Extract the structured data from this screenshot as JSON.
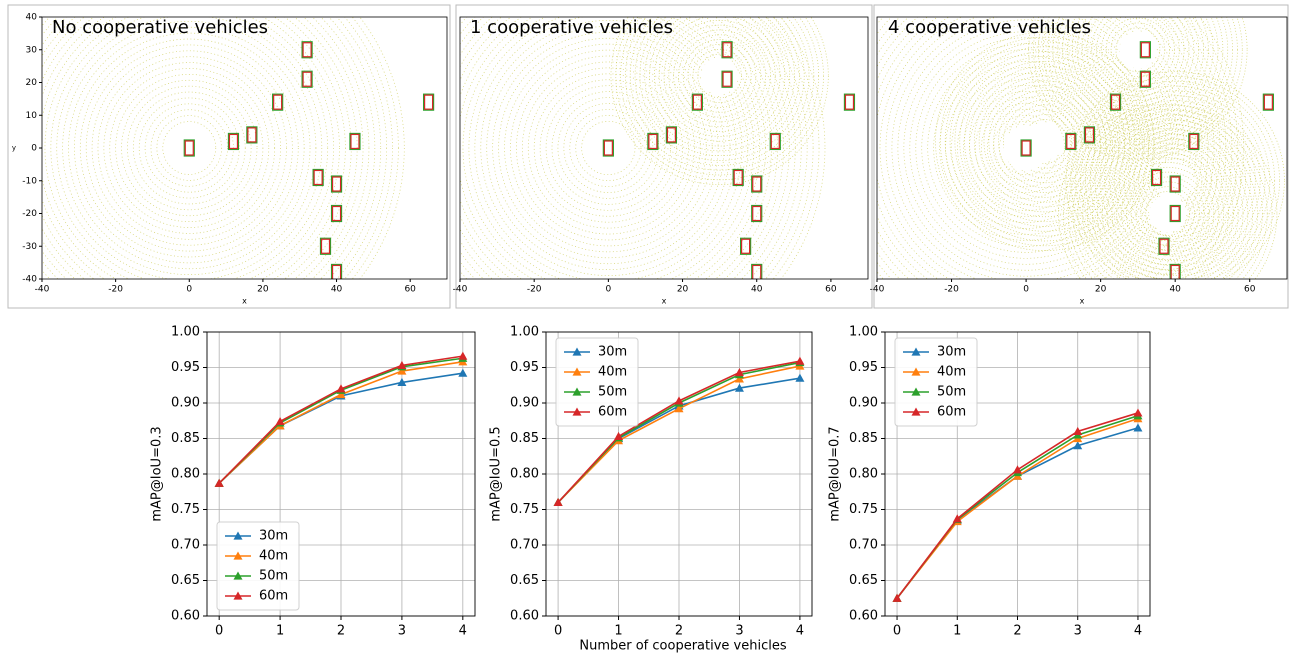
{
  "chart_data": [
    {
      "type": "pointcloud",
      "title": "No cooperative vehicles",
      "xlabel": "x",
      "ylabel": "y",
      "xlim": [
        -40,
        70
      ],
      "ylim": [
        -40,
        40
      ],
      "xticks": [
        -40,
        -20,
        0,
        20,
        40,
        60
      ],
      "yticks": [
        40,
        30,
        20,
        10,
        0,
        -10,
        -20,
        -30,
        -40
      ]
    },
    {
      "type": "pointcloud",
      "title": "1 cooperative vehicles",
      "xlabel": "x",
      "xlim": [
        -40,
        70
      ],
      "ylim": [
        -40,
        40
      ],
      "xticks": [
        -40,
        -20,
        0,
        20,
        40,
        60
      ]
    },
    {
      "type": "pointcloud",
      "title": "4 cooperative vehicles",
      "xlabel": "x",
      "xlim": [
        -40,
        70
      ],
      "ylim": [
        -40,
        40
      ],
      "xticks": [
        -40,
        -20,
        0,
        20,
        40,
        60
      ]
    },
    {
      "type": "line",
      "ylabel": "mAP@IoU=0.3",
      "categories": [
        "0",
        "1",
        "2",
        "3",
        "4"
      ],
      "xlim": [
        -0.2,
        4.2
      ],
      "ylim": [
        0.6,
        1.0
      ],
      "yticks": [
        {
          "value": 0.6,
          "label": "0.60"
        },
        0.65,
        {
          "value": 0.7,
          "label": "0.70"
        },
        0.75,
        {
          "value": 0.8,
          "label": "0.80"
        },
        0.85,
        {
          "value": 0.9,
          "label": "0.90"
        },
        0.95,
        {
          "value": 1.0,
          "label": "1.00"
        }
      ],
      "grid": true,
      "legend": "lower left",
      "series": [
        {
          "name": "30m",
          "color": "#1f77b4",
          "values": [
            0.787,
            0.868,
            0.91,
            0.929,
            0.942
          ]
        },
        {
          "name": "40m",
          "color": "#ff7f0e",
          "values": [
            0.787,
            0.868,
            0.912,
            0.945,
            0.958
          ]
        },
        {
          "name": "50m",
          "color": "#2ca02c",
          "values": [
            0.787,
            0.872,
            0.918,
            0.951,
            0.963
          ]
        },
        {
          "name": "60m",
          "color": "#d62728",
          "values": [
            0.787,
            0.874,
            0.92,
            0.953,
            0.966
          ]
        }
      ]
    },
    {
      "type": "line",
      "ylabel": "mAP@IoU=0.5",
      "xlabel": "Number of cooperative vehicles",
      "categories": [
        "0",
        "1",
        "2",
        "3",
        "4"
      ],
      "xlim": [
        -0.2,
        4.2
      ],
      "ylim": [
        0.6,
        1.0
      ],
      "yticks": [
        {
          "value": 0.6,
          "label": "0.60"
        },
        0.65,
        {
          "value": 0.7,
          "label": "0.70"
        },
        0.75,
        {
          "value": 0.8,
          "label": "0.80"
        },
        0.85,
        {
          "value": 0.9,
          "label": "0.90"
        },
        0.95,
        {
          "value": 1.0,
          "label": "1.00"
        }
      ],
      "grid": true,
      "legend": "upper left",
      "series": [
        {
          "name": "30m",
          "color": "#1f77b4",
          "values": [
            0.76,
            0.85,
            0.896,
            0.921,
            0.935
          ]
        },
        {
          "name": "40m",
          "color": "#ff7f0e",
          "values": [
            0.76,
            0.847,
            0.892,
            0.934,
            0.952
          ]
        },
        {
          "name": "50m",
          "color": "#2ca02c",
          "values": [
            0.76,
            0.851,
            0.9,
            0.94,
            0.957
          ]
        },
        {
          "name": "60m",
          "color": "#d62728",
          "values": [
            0.76,
            0.853,
            0.903,
            0.943,
            0.959
          ]
        }
      ]
    },
    {
      "type": "line",
      "ylabel": "mAP@IoU=0.7",
      "categories": [
        "0",
        "1",
        "2",
        "3",
        "4"
      ],
      "xlim": [
        -0.2,
        4.2
      ],
      "ylim": [
        0.6,
        1.0
      ],
      "yticks": [
        {
          "value": 0.6,
          "label": "0.60"
        },
        0.65,
        {
          "value": 0.7,
          "label": "0.70"
        },
        0.75,
        {
          "value": 0.8,
          "label": "0.80"
        },
        0.85,
        {
          "value": 0.9,
          "label": "0.90"
        },
        0.95,
        {
          "value": 1.0,
          "label": "1.00"
        }
      ],
      "grid": true,
      "legend": "upper left",
      "series": [
        {
          "name": "30m",
          "color": "#1f77b4",
          "values": [
            0.625,
            0.735,
            0.797,
            0.84,
            0.865
          ]
        },
        {
          "name": "40m",
          "color": "#ff7f0e",
          "values": [
            0.625,
            0.733,
            0.797,
            0.85,
            0.878
          ]
        },
        {
          "name": "50m",
          "color": "#2ca02c",
          "values": [
            0.625,
            0.736,
            0.802,
            0.855,
            0.882
          ]
        },
        {
          "name": "60m",
          "color": "#d62728",
          "values": [
            0.625,
            0.737,
            0.806,
            0.86,
            0.886
          ]
        }
      ]
    }
  ]
}
